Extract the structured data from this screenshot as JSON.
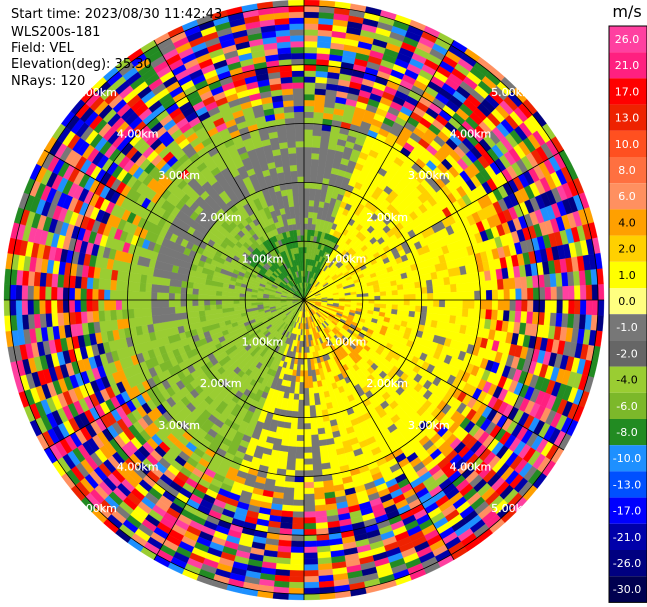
{
  "header": {
    "start_time": "Start time: 2023/08/30 11:42:43",
    "instrument": "WLS200s-181",
    "field": "Field: VEL",
    "elevation": "Elevation(deg): 35.30",
    "nrays": "NRays: 120"
  },
  "colorbar": {
    "unit": "m/s",
    "ticks": [
      "26.0",
      "21.0",
      "17.0",
      "13.0",
      "10.0",
      "8.0",
      "6.0",
      "4.0",
      "2.0",
      "1.0",
      "0.0",
      "-1.0",
      "-2.0",
      "-4.0",
      "-6.0",
      "-8.0",
      "-10.0",
      "-13.0",
      "-17.0",
      "-21.0",
      "-26.0",
      "-30.0"
    ],
    "colors": [
      "#ff40a0",
      "#ff2080",
      "#ff0000",
      "#ee2200",
      "#ff5020",
      "#ff7040",
      "#ff9060",
      "#ffa000",
      "#ffd000",
      "#ffff00",
      "#ffff80",
      "#777777",
      "#666666",
      "#9acd32",
      "#7cb82a",
      "#228b22",
      "#1e90ff",
      "#0050ff",
      "#0000ff",
      "#0000aa",
      "#000080",
      "#000050"
    ]
  },
  "chart_data": {
    "type": "heatmap",
    "projection": "PPI polar",
    "nrays": 120,
    "elevation_deg": 35.3,
    "range_rings_km": [
      1.0,
      2.0,
      3.0,
      4.0,
      5.0
    ],
    "ring_labels": [
      "1.00km",
      "2.00km",
      "3.00km",
      "4.00km",
      "5.00km"
    ],
    "unit": "m/s",
    "vmin": -30.0,
    "vmax": 26.0
  }
}
